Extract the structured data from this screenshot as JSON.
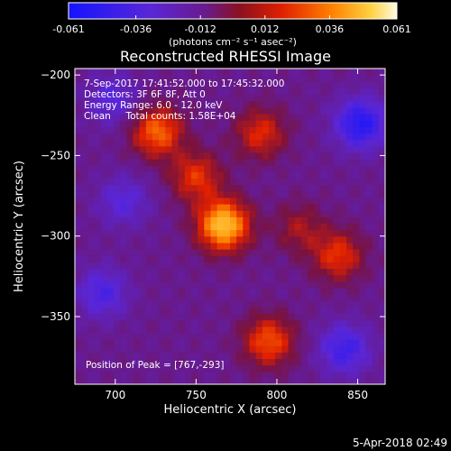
{
  "colorbar": {
    "tick_labels": [
      "-0.061",
      "-0.036",
      "-0.012",
      "0.012",
      "0.036",
      "0.061"
    ],
    "tick_values": [
      -0.061,
      -0.036,
      -0.012,
      0.012,
      0.036,
      0.061
    ],
    "range": [
      -0.061,
      0.061
    ],
    "units": "(photons cm⁻² s⁻¹ asec⁻²)",
    "colors": [
      "#1414ff",
      "#6a2bd6",
      "#7a1aa0",
      "#a01020",
      "#e02000",
      "#ff7a00",
      "#ffd040",
      "#fffbe0"
    ]
  },
  "chart_data": {
    "type": "heatmap",
    "title": "Reconstructed RHESSI Image",
    "xlabel": "Heliocentric X (arcsec)",
    "ylabel": "Heliocentric Y (arcsec)",
    "xlim": [
      675,
      867
    ],
    "ylim": [
      -392,
      -196
    ],
    "x_ticks": [
      700,
      750,
      800,
      850
    ],
    "y_ticks": [
      -200,
      -250,
      -300,
      -350
    ],
    "x_tick_labels": [
      "700",
      "750",
      "800",
      "850"
    ],
    "y_tick_labels": [
      "−200",
      "−250",
      "−300",
      "−350"
    ],
    "annotations": [
      "7-Sep-2017 17:41:52.000 to 17:45:32.000",
      "Detectors: 3F 6F 8F, Att 0",
      "Energy Range: 6.0 - 12.0 keV",
      "Clean     Total counts: 1.58E+04"
    ],
    "peak_label": "Position of Peak = [767,-293]",
    "peak": [
      767,
      -293
    ],
    "sources": [
      {
        "x": 767,
        "y": -293,
        "intensity": 0.061
      },
      {
        "x": 726,
        "y": -235,
        "intensity": 0.04
      },
      {
        "x": 790,
        "y": -236,
        "intensity": 0.028
      },
      {
        "x": 814,
        "y": -295,
        "intensity": 0.018
      },
      {
        "x": 838,
        "y": -312,
        "intensity": 0.03
      },
      {
        "x": 795,
        "y": -365,
        "intensity": 0.036
      },
      {
        "x": 750,
        "y": -263,
        "intensity": 0.03
      },
      {
        "x": 698,
        "y": -215,
        "intensity": -0.02
      },
      {
        "x": 852,
        "y": -230,
        "intensity": -0.04
      },
      {
        "x": 692,
        "y": -335,
        "intensity": -0.025
      },
      {
        "x": 842,
        "y": -370,
        "intensity": -0.03
      },
      {
        "x": 705,
        "y": -278,
        "intensity": -0.02
      }
    ]
  },
  "footer": {
    "date": "5-Apr-2018 02:49"
  }
}
